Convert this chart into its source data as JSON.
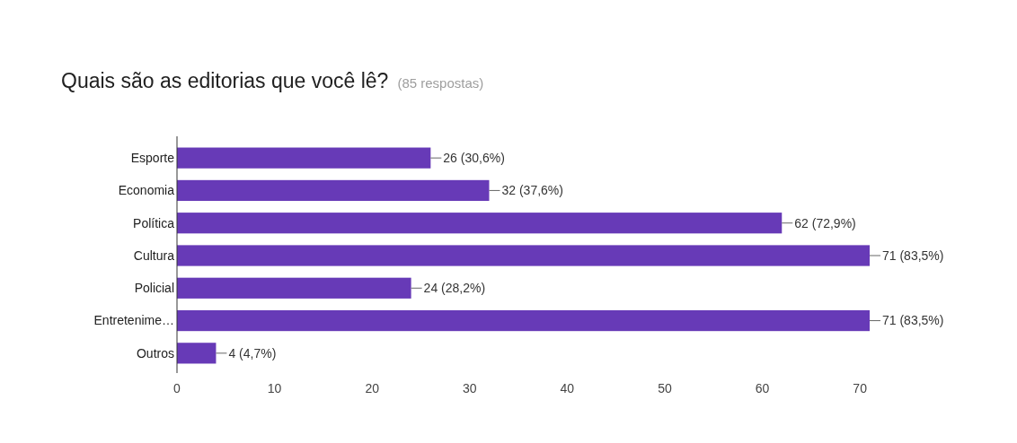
{
  "chart_data": {
    "type": "bar",
    "orientation": "horizontal",
    "title": "Quais são as editorias que você lê?",
    "subtitle": "(85 respostas)",
    "categories": [
      "Esporte",
      "Economia",
      "Política",
      "Cultura",
      "Policial",
      "Entretenime…",
      "Outros"
    ],
    "values": [
      26,
      32,
      62,
      71,
      24,
      71,
      4
    ],
    "value_labels": [
      "26 (30,6%)",
      "32 (37,6%)",
      "62 (72,9%)",
      "71 (83,5%)",
      "24 (28,2%)",
      "71 (83,5%)",
      "4 (4,7%)"
    ],
    "color": "#673ab7",
    "xlim": [
      0,
      71
    ],
    "xticks": [
      0,
      10,
      20,
      30,
      40,
      50,
      60,
      70
    ],
    "grid": false
  }
}
